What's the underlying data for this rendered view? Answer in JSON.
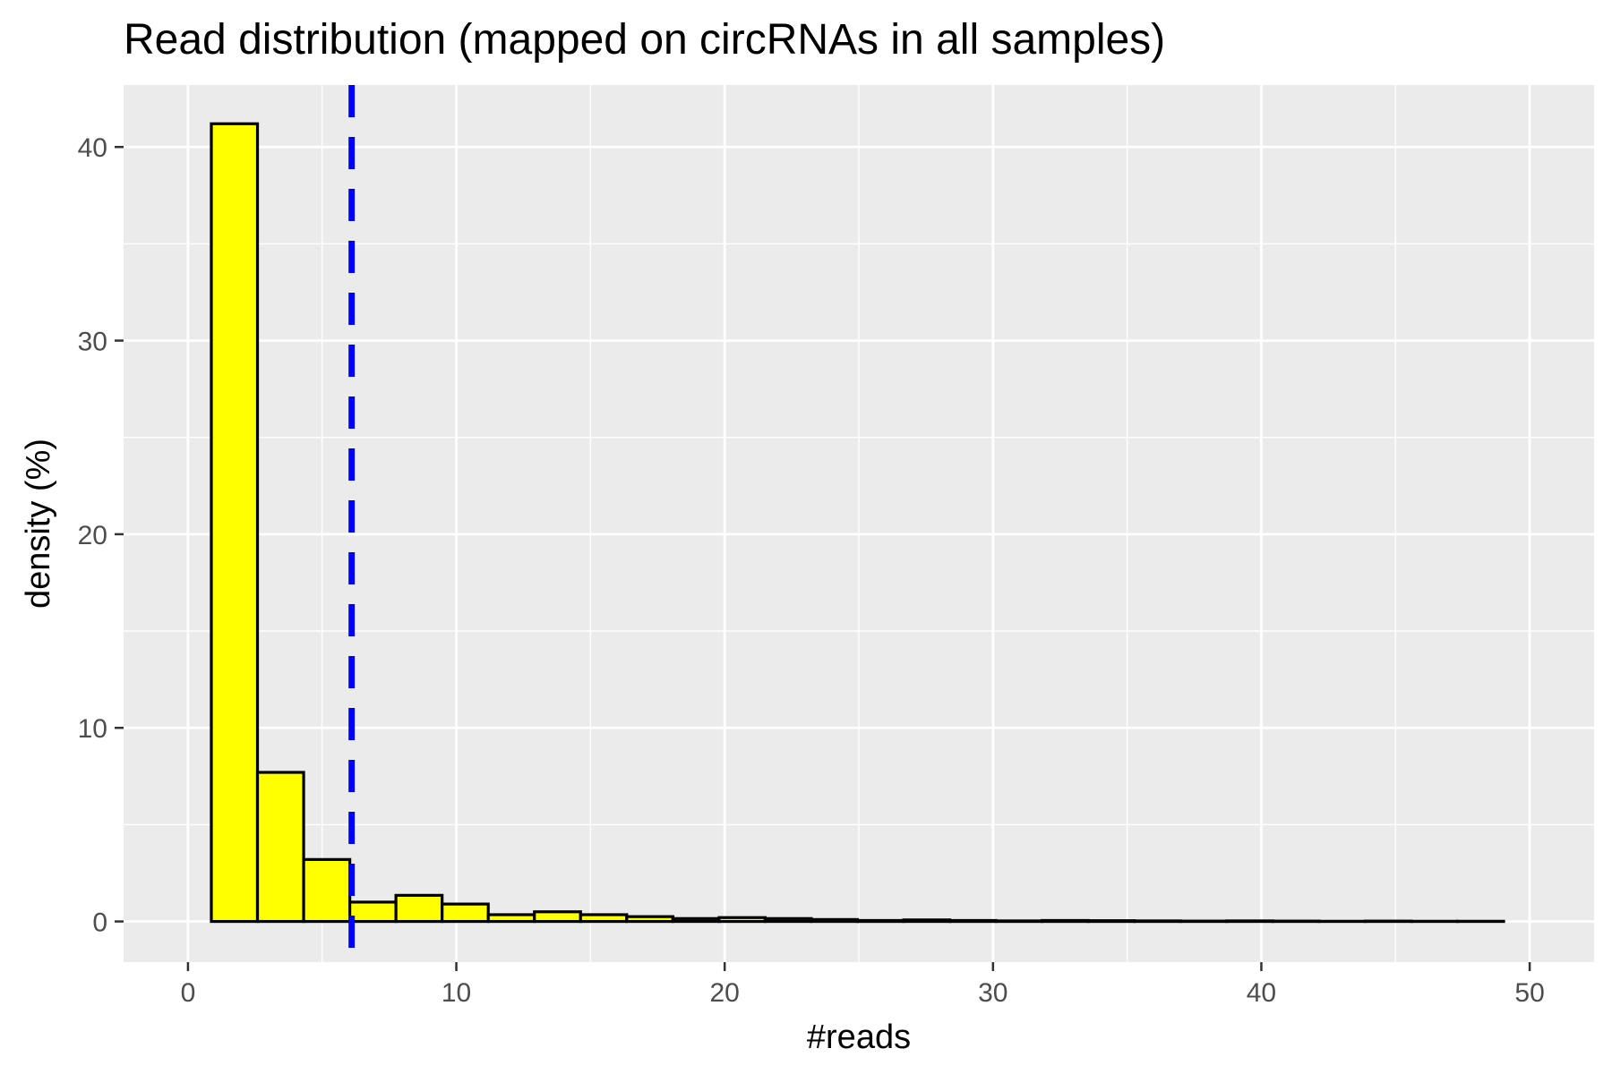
{
  "chart_data": {
    "type": "bar",
    "title": "Read distribution (mapped on circRNAs in all samples)",
    "xlabel": "#reads",
    "ylabel": "density (%)",
    "xlim": [
      -2.4,
      52.4
    ],
    "ylim": [
      -2.1,
      43.2
    ],
    "x_ticks": [
      0,
      10,
      20,
      30,
      40,
      50
    ],
    "y_ticks": [
      0,
      10,
      20,
      30,
      40
    ],
    "grid": true,
    "bin_width": 1.72,
    "bins": [
      {
        "x0": 0.87,
        "value": 41.2
      },
      {
        "x0": 2.59,
        "value": 7.7
      },
      {
        "x0": 4.31,
        "value": 3.2
      },
      {
        "x0": 6.03,
        "value": 1.0
      },
      {
        "x0": 7.75,
        "value": 1.35
      },
      {
        "x0": 9.47,
        "value": 0.9
      },
      {
        "x0": 11.19,
        "value": 0.35
      },
      {
        "x0": 12.91,
        "value": 0.5
      },
      {
        "x0": 14.63,
        "value": 0.35
      },
      {
        "x0": 16.35,
        "value": 0.25
      },
      {
        "x0": 18.07,
        "value": 0.15
      },
      {
        "x0": 19.79,
        "value": 0.2
      },
      {
        "x0": 21.51,
        "value": 0.15
      },
      {
        "x0": 23.23,
        "value": 0.1
      },
      {
        "x0": 24.95,
        "value": 0.05
      },
      {
        "x0": 26.67,
        "value": 0.08
      },
      {
        "x0": 28.39,
        "value": 0.05
      },
      {
        "x0": 30.11,
        "value": 0.03
      },
      {
        "x0": 31.83,
        "value": 0.05
      },
      {
        "x0": 33.55,
        "value": 0.04
      },
      {
        "x0": 35.27,
        "value": 0.03
      },
      {
        "x0": 36.99,
        "value": 0.02
      },
      {
        "x0": 38.71,
        "value": 0.03
      },
      {
        "x0": 40.43,
        "value": 0.02
      },
      {
        "x0": 42.15,
        "value": 0.01
      },
      {
        "x0": 43.87,
        "value": 0.02
      },
      {
        "x0": 45.59,
        "value": 0.01
      },
      {
        "x0": 47.31,
        "value": 0.01
      }
    ],
    "vline": {
      "x": 6.1,
      "style": "dashed"
    },
    "colors": {
      "bar_fill": "#ffff00",
      "bar_stroke": "#000000",
      "vline": "#0000ff",
      "panel_background": "#ebebeb",
      "grid": "#ffffff"
    }
  }
}
